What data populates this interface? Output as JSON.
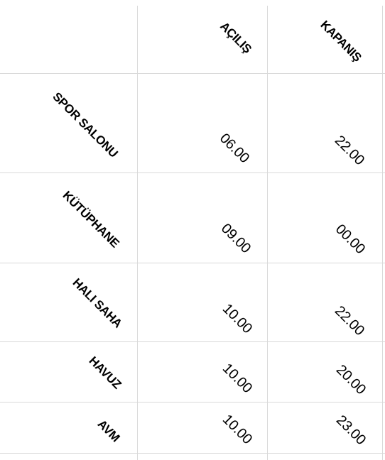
{
  "table": {
    "columns": [
      "AÇILIŞ",
      "KAPANIŞ"
    ],
    "rows": [
      {
        "name": "SPOR SALONU",
        "open": "06.00",
        "close": "22.00"
      },
      {
        "name": "KÜTÜPHANE",
        "open": "09.00",
        "close": "00.00"
      },
      {
        "name": "HALI SAHA",
        "open": "10.00",
        "close": "22.00"
      },
      {
        "name": "HAVUZ",
        "open": "10.00",
        "close": "20.00"
      },
      {
        "name": "AVM",
        "open": "10.00",
        "close": "23.00"
      }
    ]
  }
}
